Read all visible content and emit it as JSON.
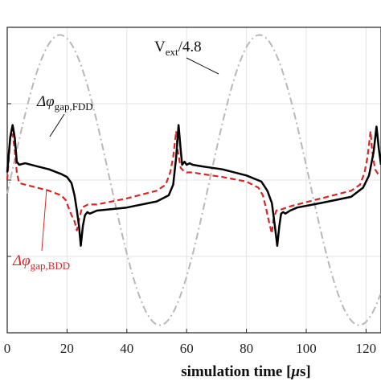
{
  "chart_data": {
    "type": "line",
    "xlabel_main": "simulation time [",
    "xlabel_unit": "μ",
    "xlabel_end": "s]",
    "xlim": [
      0,
      125
    ],
    "ylim": [
      -1.0,
      1.0
    ],
    "x_ticks": [
      0,
      20,
      40,
      60,
      80,
      100,
      120
    ],
    "x_tick_labels": [
      "0",
      "20",
      "40",
      "60",
      "80",
      "100",
      "120"
    ],
    "grid": true,
    "colors": {
      "fdd": "#000000",
      "bdd": "#d62728",
      "vext": "#b8b8b8"
    },
    "series": [
      {
        "key": "fdd",
        "style": "solid",
        "x": [
          0,
          1,
          1.8,
          2.5,
          3.2,
          4,
          6,
          10,
          14,
          18,
          20,
          21.5,
          22.5,
          23.3,
          24,
          24.6,
          25.3,
          26,
          26.8,
          27.6,
          30,
          40,
          50,
          54,
          55.5,
          56.5,
          57.3,
          58,
          58.5,
          59.3,
          60,
          61,
          62,
          65,
          72,
          80,
          85,
          87,
          88.5,
          89.5,
          90.3,
          91,
          91.6,
          92.3,
          93,
          93.8,
          94.6,
          97,
          105,
          115,
          119,
          121,
          122.5,
          123.5,
          124.3,
          125
        ],
        "y": [
          0.05,
          0.28,
          0.36,
          0.28,
          0.12,
          0.1,
          0.11,
          0.09,
          0.07,
          0.04,
          0.02,
          -0.02,
          -0.1,
          -0.2,
          -0.3,
          -0.43,
          -0.3,
          -0.23,
          -0.21,
          -0.22,
          -0.2,
          -0.18,
          -0.14,
          -0.1,
          -0.03,
          0.15,
          0.36,
          0.2,
          0.1,
          0.12,
          0.1,
          0.11,
          0.1,
          0.09,
          0.07,
          0.03,
          -0.01,
          -0.07,
          -0.15,
          -0.3,
          -0.43,
          -0.3,
          -0.22,
          -0.21,
          -0.22,
          -0.21,
          -0.2,
          -0.18,
          -0.15,
          -0.11,
          -0.05,
          0.03,
          0.18,
          0.35,
          0.2,
          0.1
        ]
      },
      {
        "key": "bdd",
        "style": "dashed",
        "x": [
          0,
          1,
          1.8,
          2.5,
          3.2,
          4,
          6,
          10,
          14,
          18,
          19.5,
          20.5,
          21.5,
          22.5,
          23.3,
          24,
          25,
          27,
          30,
          40,
          50,
          53,
          54.5,
          55.5,
          56.5,
          57,
          58,
          59,
          60,
          62,
          65,
          72,
          80,
          84,
          85.5,
          86.5,
          87.5,
          88.5,
          89,
          90,
          92,
          95,
          105,
          115,
          118,
          119.5,
          120.5,
          121.5,
          122,
          123,
          124,
          125
        ],
        "y": [
          0.0,
          0.27,
          0.3,
          0.2,
          0.05,
          -0.02,
          -0.03,
          -0.05,
          -0.07,
          -0.1,
          -0.13,
          -0.18,
          -0.23,
          -0.27,
          -0.33,
          -0.26,
          -0.18,
          -0.16,
          -0.16,
          -0.12,
          -0.07,
          -0.03,
          0.05,
          0.15,
          0.32,
          0.2,
          0.08,
          0.06,
          0.05,
          0.05,
          0.04,
          0.02,
          -0.01,
          -0.05,
          -0.1,
          -0.18,
          -0.27,
          -0.35,
          -0.26,
          -0.2,
          -0.19,
          -0.17,
          -0.12,
          -0.07,
          -0.03,
          0.05,
          0.15,
          0.32,
          0.2,
          0.07,
          0.04,
          0.03
        ]
      },
      {
        "key": "vext",
        "style": "dashdot",
        "func": "sine",
        "amplitude": 0.95,
        "period": 66.7,
        "phase_shift": 1.0
      }
    ],
    "annotations": {
      "fdd": {
        "main": "Δφ",
        "sub": "gap,FDD"
      },
      "bdd": {
        "main": "Δφ",
        "sub": "gap,BDD"
      },
      "vext": {
        "main": "V",
        "sub": "ext",
        "suffix": "/4.8"
      }
    }
  }
}
